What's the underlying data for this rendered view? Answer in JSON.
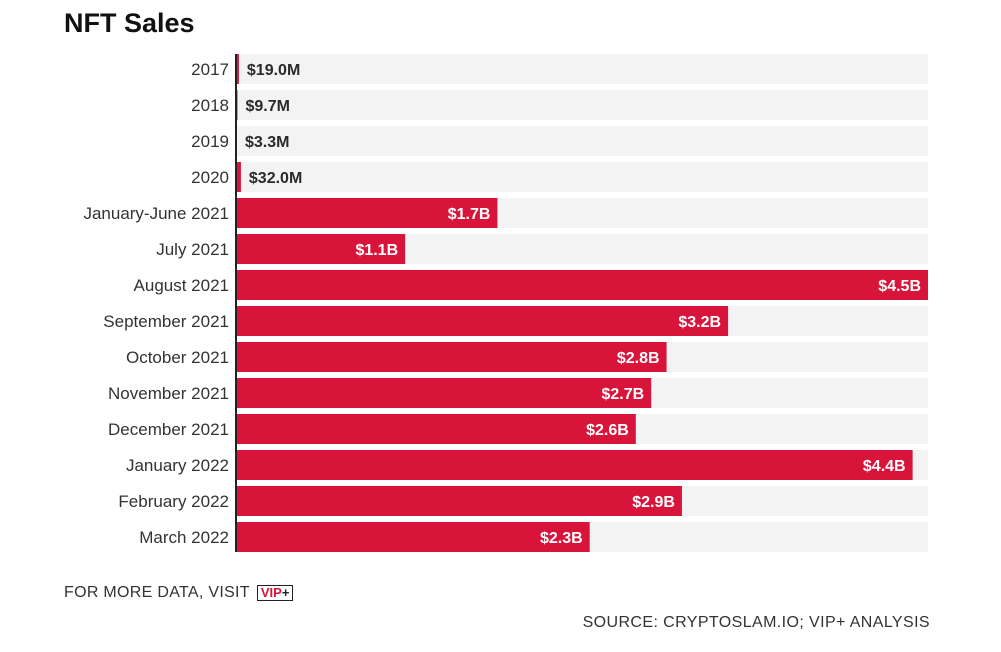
{
  "chart_data": {
    "type": "bar",
    "orientation": "horizontal",
    "title": "NFT Sales",
    "categories": [
      "2017",
      "2018",
      "2019",
      "2020",
      "January-June 2021",
      "July 2021",
      "August 2021",
      "September 2021",
      "October 2021",
      "November 2021",
      "December 2021",
      "January 2022",
      "February 2022",
      "March 2022"
    ],
    "values": [
      19000000,
      9700000,
      3300000,
      32000000,
      1700000000,
      1100000000,
      4500000000,
      3200000000,
      2800000000,
      2700000000,
      2600000000,
      4400000000,
      2900000000,
      2300000000
    ],
    "labels": [
      "$19.0M",
      "$9.7M",
      "$3.3M",
      "$32.0M",
      "$1.7B",
      "$1.1B",
      "$4.5B",
      "$3.2B",
      "$2.8B",
      "$2.7B",
      "$2.6B",
      "$4.4B",
      "$2.9B",
      "$2.3B"
    ],
    "xlim": [
      0,
      4500000000
    ],
    "grid": false,
    "legend": "none",
    "bar_color": "#d8143a",
    "track_color": "#f3f3f3"
  },
  "footer": {
    "more_text": "FOR MORE DATA, VISIT",
    "badge_vip": "VIP",
    "badge_plus": "+",
    "source": "SOURCE: CRYPTOSLAM.IO; VIP+ ANALYSIS"
  }
}
